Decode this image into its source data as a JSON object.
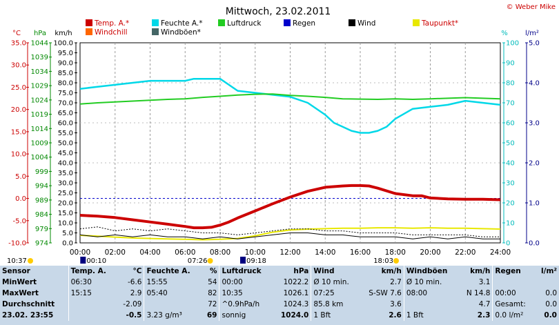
{
  "chart_data": {
    "type": "line",
    "title": "Mittwoch, 23.02.2011",
    "credit": "© Weber Mike",
    "x_ticks": [
      "00:00",
      "02:00",
      "04:00",
      "06:00",
      "08:00",
      "10:00",
      "12:00",
      "14:00",
      "16:00",
      "18:00",
      "20:00",
      "22:00",
      "24:00"
    ],
    "axes": {
      "temp_c": {
        "label": "°C",
        "ticks": [
          "35.0",
          "30.0",
          "25.0",
          "20.0",
          "15.0",
          "10.0",
          "5.0",
          "0.0",
          "-5.0",
          "-10.0"
        ],
        "range": [
          -10,
          35
        ],
        "color": "#cc0000"
      },
      "pressure_hpa": {
        "label": "hPa",
        "ticks": [
          "1044",
          "1039",
          "1034",
          "1029",
          "1024",
          "1019",
          "1014",
          "1009",
          "1004",
          "999",
          "994",
          "989",
          "984",
          "979",
          "974"
        ],
        "range": [
          974,
          1044
        ],
        "color": "#008800"
      },
      "wind_kmh": {
        "label": "km/h",
        "ticks": [
          "100.0",
          "95.0",
          "90.0",
          "85.0",
          "80.0",
          "75.0",
          "70.0",
          "65.0",
          "60.0",
          "55.0",
          "50.0",
          "45.0",
          "40.0",
          "35.0",
          "30.0",
          "25.0",
          "20.0",
          "15.0",
          "10.0",
          "5.0",
          "0.0"
        ],
        "range": [
          0,
          100
        ],
        "color": "#000000"
      },
      "humidity_pct": {
        "label": "%",
        "ticks": [
          "100",
          "90",
          "80",
          "70",
          "60",
          "50",
          "40",
          "30",
          "20",
          "10",
          "0"
        ],
        "range": [
          0,
          100
        ],
        "color": "#00bbbb"
      },
      "rain_lm2": {
        "label": "l/m²",
        "ticks": [
          "5.0",
          "4.0",
          "3.0",
          "2.0",
          "1.0",
          "0.0"
        ],
        "range": [
          0,
          5
        ],
        "color": "#000088"
      }
    },
    "legend": [
      {
        "name": "Temp. A.*",
        "color": "#cc0000"
      },
      {
        "name": "Feuchte A.*",
        "color": "#00d8e8"
      },
      {
        "name": "Luftdruck",
        "color": "#22cc22"
      },
      {
        "name": "Regen",
        "color": "#0000cc"
      },
      {
        "name": "Wind",
        "color": "#000000"
      },
      {
        "name": "Taupunkt*",
        "color": "#e8e800"
      },
      {
        "name": "Windchill",
        "color": "#ff6600"
      },
      {
        "name": "Windböen*",
        "color": "#446666"
      }
    ],
    "series": [
      {
        "name": "Temp. A.*",
        "axis": "temp_c",
        "color": "#cc0000",
        "x": [
          0,
          1,
          2,
          3,
          4,
          5,
          6,
          6.5,
          7,
          7.5,
          8,
          8.5,
          9,
          10,
          11,
          12,
          13,
          14,
          15,
          15.5,
          16,
          16.5,
          17,
          18,
          19,
          19.5,
          20,
          21,
          22,
          23,
          24
        ],
        "y": [
          -3.8,
          -4.0,
          -4.3,
          -4.8,
          -5.3,
          -5.8,
          -6.3,
          -6.6,
          -6.6,
          -6.5,
          -6.0,
          -5.3,
          -4.4,
          -2.8,
          -1.2,
          0.3,
          1.6,
          2.5,
          2.8,
          2.9,
          2.9,
          2.8,
          2.3,
          1.1,
          0.6,
          0.6,
          0.1,
          -0.1,
          -0.2,
          -0.2,
          -0.3
        ]
      },
      {
        "name": "Feuchte A.*",
        "axis": "humidity_pct",
        "color": "#00d8e8",
        "x": [
          0,
          1,
          2,
          3,
          4,
          5,
          6,
          6.5,
          7,
          7.5,
          8,
          8.5,
          9,
          10,
          11,
          12,
          13,
          14,
          14.5,
          15,
          15.5,
          16,
          16.5,
          17,
          17.5,
          18,
          19,
          20,
          21,
          22,
          23,
          24
        ],
        "y": [
          77,
          78,
          79,
          80,
          81,
          81,
          81,
          82,
          82,
          82,
          82,
          79,
          76,
          75,
          74,
          73,
          70,
          64,
          60,
          58,
          56,
          55,
          55,
          56,
          58,
          62,
          67,
          68,
          69,
          71,
          70,
          69
        ]
      },
      {
        "name": "Luftdruck",
        "axis": "pressure_hpa",
        "color": "#22cc22",
        "x": [
          0,
          1,
          2,
          3,
          4,
          5,
          6,
          7,
          8,
          9,
          10,
          11,
          12,
          13,
          14,
          15,
          16,
          17,
          18,
          19,
          20,
          21,
          22,
          23,
          24
        ],
        "y": [
          1022.6,
          1023.0,
          1023.3,
          1023.6,
          1023.9,
          1024.2,
          1024.4,
          1024.9,
          1025.3,
          1025.7,
          1026.0,
          1026.1,
          1025.6,
          1025.3,
          1024.9,
          1024.4,
          1024.3,
          1024.2,
          1024.4,
          1024.2,
          1024.4,
          1024.6,
          1024.8,
          1024.6,
          1024.4
        ]
      },
      {
        "name": "Taupunkt*",
        "axis": "temp_c",
        "color": "#e8e800",
        "x": [
          0,
          1,
          2,
          3,
          4,
          5,
          6,
          7,
          8,
          9,
          10,
          11,
          12,
          13,
          14,
          15,
          16,
          17,
          18,
          19,
          20,
          21,
          22,
          23,
          24
        ],
        "y": [
          -8.3,
          -8.5,
          -8.7,
          -8.9,
          -9.0,
          -9.1,
          -9.2,
          -9.3,
          -9.2,
          -9.0,
          -8.4,
          -7.6,
          -7.1,
          -6.9,
          -6.8,
          -6.7,
          -6.7,
          -6.6,
          -6.6,
          -6.7,
          -6.6,
          -6.7,
          -6.7,
          -6.8,
          -6.9
        ]
      },
      {
        "name": "Wind",
        "axis": "wind_kmh",
        "color": "#000000",
        "x": [
          0,
          1,
          2,
          3,
          4,
          5,
          6,
          7,
          8,
          9,
          10,
          11,
          12,
          13,
          14,
          15,
          16,
          17,
          18,
          19,
          20,
          21,
          22,
          23,
          24
        ],
        "y": [
          4,
          3,
          4,
          3,
          4,
          3,
          3,
          2,
          3,
          2,
          3,
          4,
          5,
          5,
          4,
          4,
          3,
          3,
          3,
          2,
          3,
          2,
          3,
          2,
          2
        ]
      },
      {
        "name": "Windböen*",
        "axis": "wind_kmh",
        "color": "#000000",
        "x": [
          0,
          1,
          2,
          3,
          4,
          5,
          6,
          7,
          8,
          9,
          10,
          11,
          12,
          13,
          14,
          15,
          16,
          17,
          18,
          19,
          20,
          21,
          22,
          23,
          24
        ],
        "y": [
          7,
          8,
          6,
          7,
          6,
          7,
          6,
          5,
          5,
          4,
          5,
          6,
          7,
          7,
          6,
          6,
          5,
          5,
          5,
          4,
          4,
          4,
          4,
          3,
          3
        ]
      }
    ],
    "markers": [
      {
        "time": "10:37",
        "hour": 0,
        "color": "#ffcc00"
      },
      {
        "time": "00:10",
        "hour": 0.17,
        "color": "#000080"
      },
      {
        "time": "07:26",
        "hour": 7.43,
        "color": "#ffcc00"
      },
      {
        "time": "09:18",
        "hour": 9.3,
        "color": "#000080"
      },
      {
        "time": "18:03",
        "hour": 18.05,
        "color": "#ffcc00"
      }
    ]
  },
  "stats": {
    "headers": [
      "Sensor",
      "Temp. A.",
      "°C",
      "Feuchte A.",
      "%",
      "Luftdruck",
      "hPa",
      "Wind",
      "km/h",
      "Windböen",
      "km/h",
      "Regen",
      "l/m²"
    ],
    "rows": [
      {
        "label": "MinWert",
        "cells": [
          "06:30",
          "-6.6",
          "15:55",
          "54",
          "00:00",
          "1022.2",
          "Ø 10 min.",
          "2.7",
          "Ø 10 min.",
          "3.1",
          "",
          ""
        ]
      },
      {
        "label": "MaxWert",
        "cells": [
          "15:15",
          "2.9",
          "05:40",
          "82",
          "10:35",
          "1026.1",
          "07:25",
          "S-SW 7.6",
          "08:00",
          "N 14.8",
          "00:00",
          "0.0"
        ]
      },
      {
        "label": "Durchschnitt",
        "cells": [
          "",
          "-2.09",
          "",
          "72",
          "^0.9hPa/h",
          "1024.3",
          "85.8 km",
          "3.6",
          "",
          "4.7",
          "Gesamt:",
          "0.0"
        ]
      },
      {
        "label": "23.02. 23:55",
        "cells": [
          "",
          "-0.5",
          "3.23 g/m³",
          "69",
          "sonnig",
          "1024.0",
          "1 Bft",
          "2.6",
          "1 Bft",
          "2.3",
          "0.0 l/m²",
          "0.0"
        ]
      }
    ]
  }
}
